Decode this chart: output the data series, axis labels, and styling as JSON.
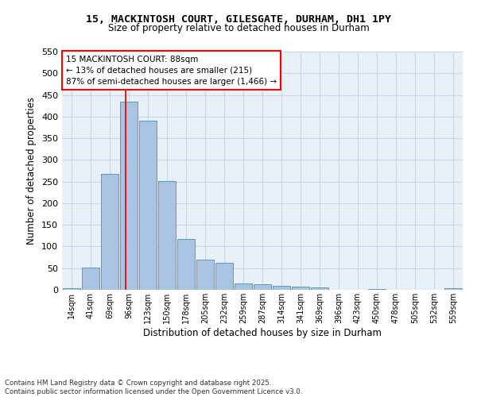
{
  "title_line1": "15, MACKINTOSH COURT, GILESGATE, DURHAM, DH1 1PY",
  "title_line2": "Size of property relative to detached houses in Durham",
  "xlabel": "Distribution of detached houses by size in Durham",
  "ylabel": "Number of detached properties",
  "footnote1": "Contains HM Land Registry data © Crown copyright and database right 2025.",
  "footnote2": "Contains public sector information licensed under the Open Government Licence v3.0.",
  "categories": [
    "14sqm",
    "41sqm",
    "69sqm",
    "96sqm",
    "123sqm",
    "150sqm",
    "178sqm",
    "205sqm",
    "232sqm",
    "259sqm",
    "287sqm",
    "314sqm",
    "341sqm",
    "369sqm",
    "396sqm",
    "423sqm",
    "450sqm",
    "478sqm",
    "505sqm",
    "532sqm",
    "559sqm"
  ],
  "values": [
    4,
    52,
    268,
    435,
    390,
    251,
    117,
    70,
    62,
    14,
    13,
    9,
    8,
    6,
    0,
    0,
    1,
    0,
    0,
    0,
    3
  ],
  "bar_color": "#a8c4e0",
  "bar_edge_color": "#5a9ac8",
  "grid_color": "#c8d8ea",
  "background_color": "#e8f0f8",
  "annotation_text": "15 MACKINTOSH COURT: 88sqm\n← 13% of detached houses are smaller (215)\n87% of semi-detached houses are larger (1,466) →",
  "annotation_box_color": "white",
  "annotation_box_edge_color": "red",
  "vline_x": 2.82,
  "vline_color": "red",
  "ylim": [
    0,
    550
  ],
  "yticks": [
    0,
    50,
    100,
    150,
    200,
    250,
    300,
    350,
    400,
    450,
    500,
    550
  ]
}
